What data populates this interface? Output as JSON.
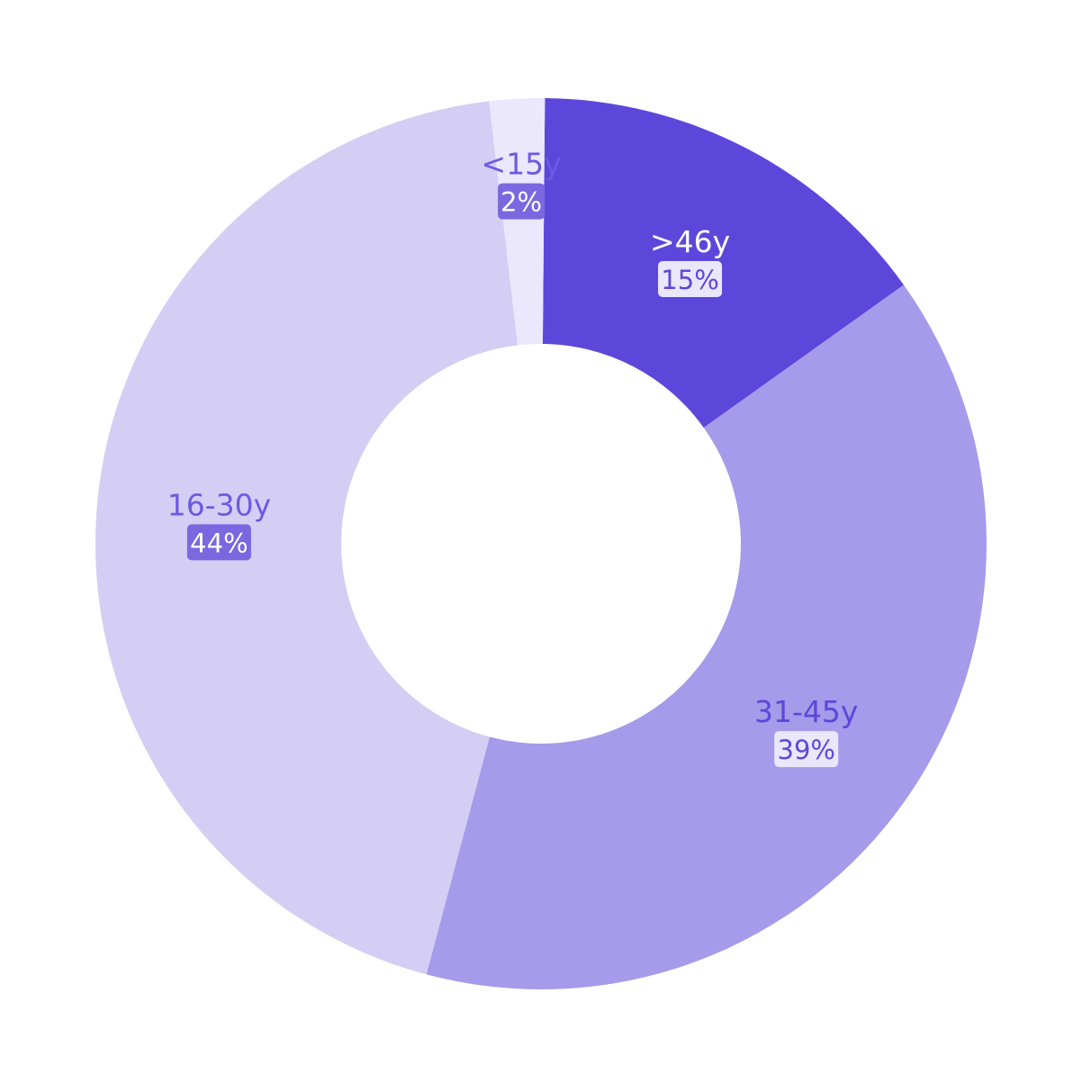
{
  "chart_data": {
    "type": "pie",
    "variant": "donut",
    "title": "",
    "legend": "none",
    "segments": [
      {
        "label": ">46y",
        "value": 15,
        "value_label": "15%",
        "color": "#5d47db",
        "label_color": "#ffffff",
        "badge_color": "#eae6fc",
        "badge_text_color": "#5d47db"
      },
      {
        "label": "31-45y",
        "value": 39,
        "value_label": "39%",
        "color": "#a69aea",
        "label_color": "#5d47db",
        "badge_color": "#eae6fc",
        "badge_text_color": "#5d47db"
      },
      {
        "label": "16-30y",
        "value": 44,
        "value_label": "44%",
        "color": "#d4cdf4",
        "label_color": "#6e5ae0",
        "badge_color": "#7b68e0",
        "badge_text_color": "#ffffff"
      },
      {
        "label": "<15y",
        "value": 2,
        "value_label": "2%",
        "color": "#ebe7fd",
        "label_color": "#6e5ae0",
        "badge_color": "#7b68e0",
        "badge_text_color": "#ffffff"
      }
    ]
  }
}
